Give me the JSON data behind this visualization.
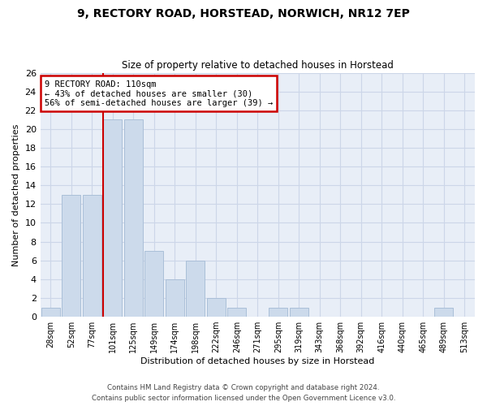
{
  "title_line1": "9, RECTORY ROAD, HORSTEAD, NORWICH, NR12 7EP",
  "title_line2": "Size of property relative to detached houses in Horstead",
  "xlabel": "Distribution of detached houses by size in Horstead",
  "ylabel": "Number of detached properties",
  "bar_labels": [
    "28sqm",
    "52sqm",
    "77sqm",
    "101sqm",
    "125sqm",
    "149sqm",
    "174sqm",
    "198sqm",
    "222sqm",
    "246sqm",
    "271sqm",
    "295sqm",
    "319sqm",
    "343sqm",
    "368sqm",
    "392sqm",
    "416sqm",
    "440sqm",
    "465sqm",
    "489sqm",
    "513sqm"
  ],
  "bar_heights": [
    1,
    13,
    13,
    21,
    21,
    7,
    4,
    6,
    2,
    1,
    0,
    1,
    1,
    0,
    0,
    0,
    0,
    0,
    0,
    1,
    0
  ],
  "bar_color": "#ccdaeb",
  "bar_edge_color": "#aabfd8",
  "vline_index": 3,
  "annotation_text": "9 RECTORY ROAD: 110sqm\n← 43% of detached houses are smaller (30)\n56% of semi-detached houses are larger (39) →",
  "annotation_box_color": "#ffffff",
  "annotation_box_edge": "#cc0000",
  "vline_color": "#cc0000",
  "ylim": [
    0,
    26
  ],
  "yticks": [
    0,
    2,
    4,
    6,
    8,
    10,
    12,
    14,
    16,
    18,
    20,
    22,
    24,
    26
  ],
  "grid_color": "#ccd6e8",
  "background_color": "#e8eef7",
  "footer_line1": "Contains HM Land Registry data © Crown copyright and database right 2024.",
  "footer_line2": "Contains public sector information licensed under the Open Government Licence v3.0."
}
